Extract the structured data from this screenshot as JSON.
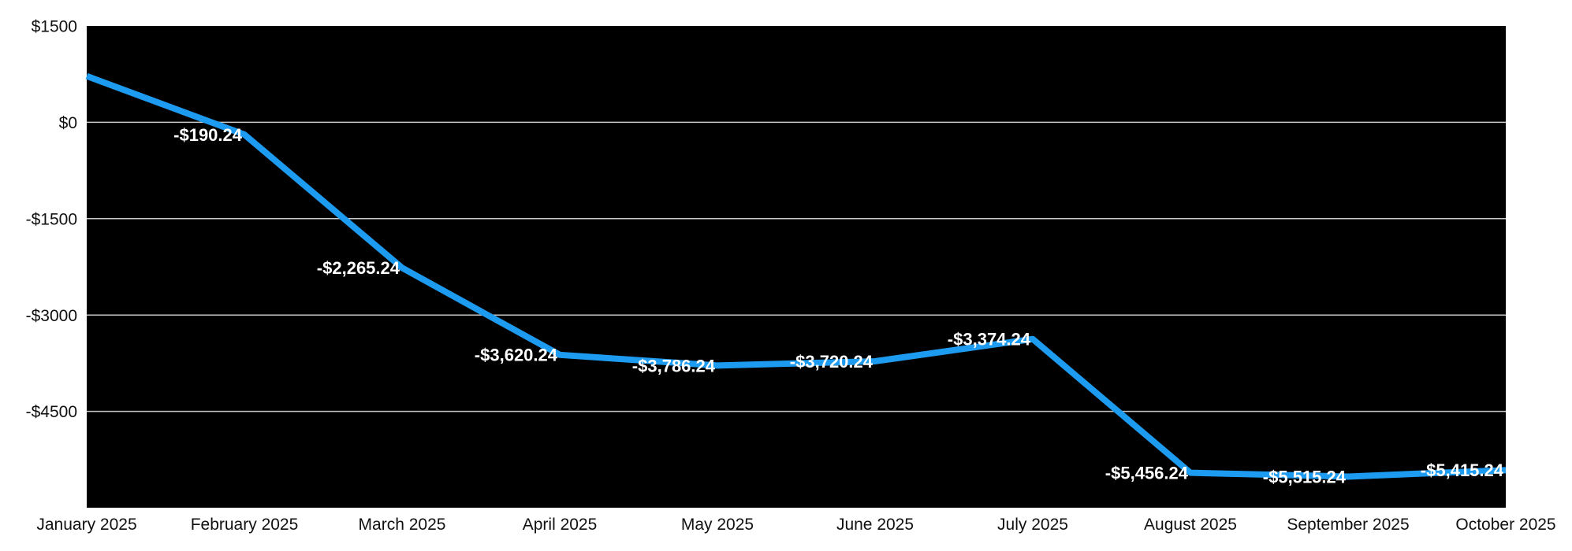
{
  "chart_data": {
    "type": "line",
    "title": "",
    "x_labels": [
      "January 2025",
      "February 2025",
      "March 2025",
      "April 2025",
      "May 2025",
      "June 2025",
      "July 2025",
      "August 2025",
      "September 2025",
      "October 2025"
    ],
    "series": [
      {
        "values": [
          720,
          -190.24,
          -2265.24,
          -3620.24,
          -3786.24,
          -3720.24,
          -3374.24,
          -5456.24,
          -5515.24,
          -5415.24
        ],
        "point_labels": [
          "",
          "-$190.24",
          "-$2,265.24",
          "-$3,620.24",
          "-$3,786.24",
          "-$3,720.24",
          "-$3,374.24",
          "-$5,456.24",
          "-$5,515.24",
          "-$5,415.24"
        ],
        "color": "#1d9bf0"
      }
    ],
    "y_ticks": [
      {
        "value": 1500,
        "label": "$1500"
      },
      {
        "value": 0,
        "label": "$0"
      },
      {
        "value": -1500,
        "label": "-$1500"
      },
      {
        "value": -3000,
        "label": "-$3000"
      },
      {
        "value": -4500,
        "label": "-$4500"
      }
    ],
    "ylim": [
      -6000,
      1500
    ],
    "grid": true,
    "legend_position": "none",
    "colors": {
      "page_background": "#ffffff",
      "plot_background": "#000000",
      "gridline": "#c9c9c9",
      "axis_text": "#111111",
      "point_label_text": "#ffffff"
    }
  }
}
